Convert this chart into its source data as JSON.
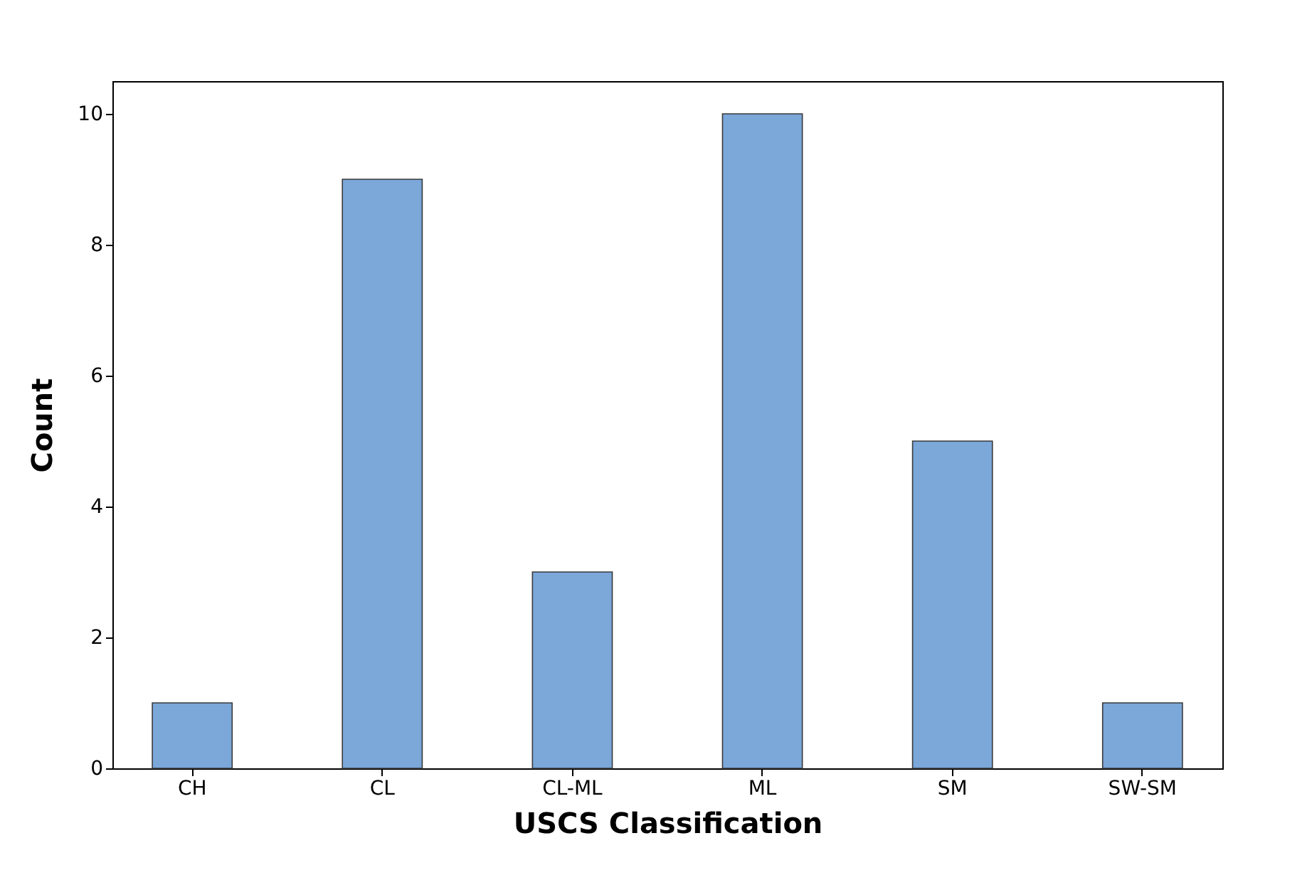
{
  "chart_data": {
    "type": "bar",
    "xlabel": "USCS Classification",
    "ylabel": "Count",
    "categories": [
      "CH",
      "CL",
      "CL-ML",
      "ML",
      "SM",
      "SW-SM"
    ],
    "values": [
      1,
      9,
      3,
      10,
      5,
      1
    ],
    "color": "#7ba7d9",
    "ylim": [
      0,
      10.5
    ],
    "yticks": [
      0,
      2,
      4,
      6,
      8,
      10
    ],
    "grid": false
  }
}
